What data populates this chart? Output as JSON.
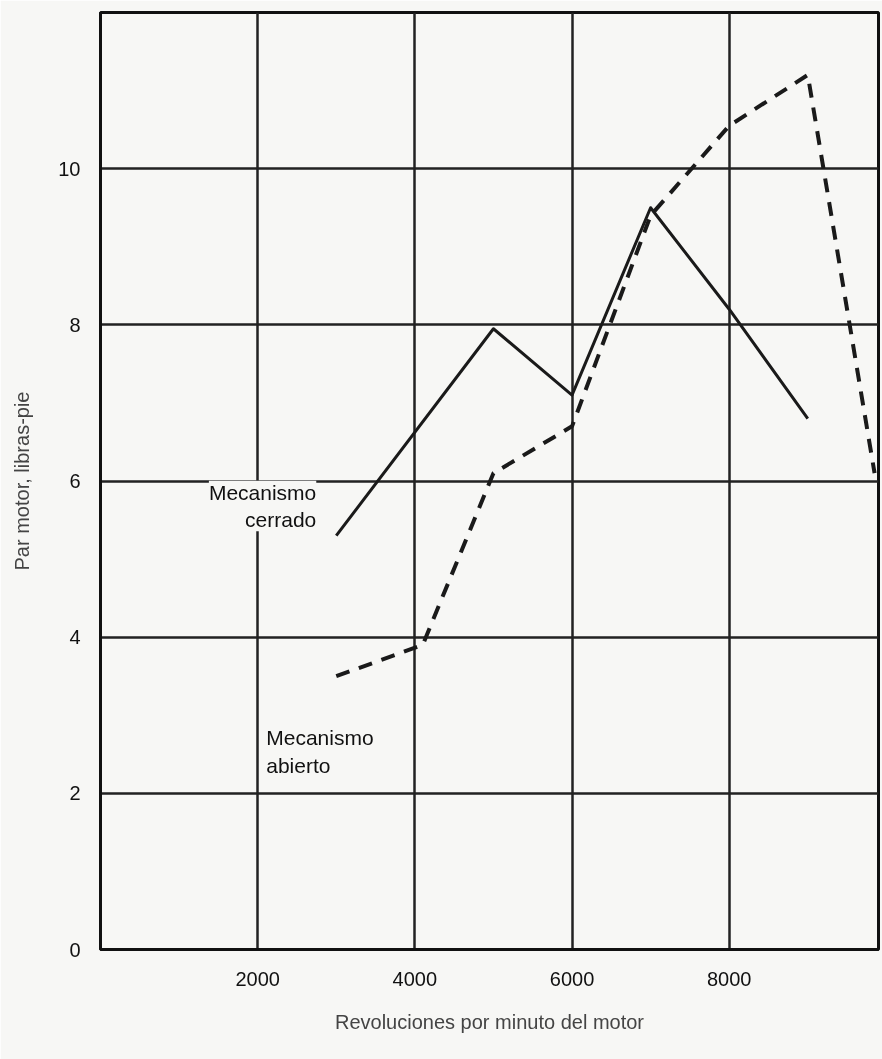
{
  "chart_data": {
    "type": "line",
    "xlabel": "Revoluciones por minuto del motor",
    "ylabel": "Par motor, libras-pie",
    "xlim": [
      0,
      9900
    ],
    "ylim": [
      0,
      12
    ],
    "xticks": [
      2000,
      4000,
      6000,
      8000
    ],
    "yticks": [
      0,
      2,
      4,
      6,
      8,
      10
    ],
    "grid": true,
    "legend": false,
    "marker": "none",
    "series": [
      {
        "name": "Mecanismo cerrado",
        "color": "#1a1a1a",
        "line_style": "solid",
        "x": [
          3000,
          5000,
          6000,
          7000,
          8000,
          9000
        ],
        "values": [
          5.3,
          7.95,
          7.1,
          9.5,
          8.2,
          6.8
        ]
      },
      {
        "name": "Mecanismo abierto",
        "color": "#1a1a1a",
        "line_style": "dashed",
        "x": [
          3000,
          4100,
          5000,
          6000,
          7000,
          8000,
          9000,
          9850
        ],
        "values": [
          3.5,
          3.9,
          6.1,
          6.7,
          9.4,
          10.55,
          11.2,
          6.1
        ]
      }
    ]
  }
}
